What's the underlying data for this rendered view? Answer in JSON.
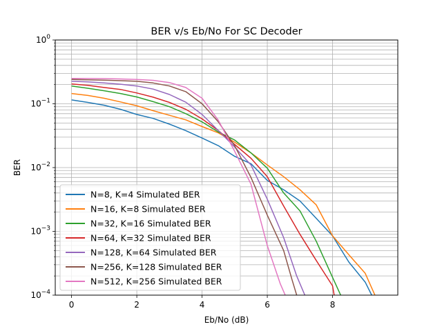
{
  "chart_data": {
    "type": "line",
    "title": "BER v/s Eb/No For SC Decoder",
    "xlabel": "Eb/No (dB)",
    "ylabel": "BER",
    "xlim": [
      -0.5,
      10
    ],
    "ylim": [
      0.0001,
      1
    ],
    "yscale": "log",
    "grid": true,
    "x_ticks": [
      0,
      2,
      4,
      6,
      8
    ],
    "x_tick_labels": [
      "0",
      "2",
      "4",
      "6",
      "8"
    ],
    "y_ticks": [
      0.0001,
      0.001,
      0.01,
      0.1,
      1
    ],
    "y_tick_labels": [
      {
        "base": "10",
        "exp": "−4"
      },
      {
        "base": "10",
        "exp": "−3"
      },
      {
        "base": "10",
        "exp": "−2"
      },
      {
        "base": "10",
        "exp": "−1"
      },
      {
        "base": "10",
        "exp": "0"
      }
    ],
    "legend_position": "lower-left",
    "series": [
      {
        "name": "N=8, K=4 Simulated BER",
        "color": "#1f77b4",
        "x": [
          0,
          0.5,
          1,
          1.5,
          2,
          2.5,
          3,
          3.5,
          4,
          4.5,
          5,
          5.5,
          6,
          6.5,
          7,
          7.5,
          8,
          8.5,
          9,
          9.2
        ],
        "y": [
          0.115,
          0.105,
          0.095,
          0.082,
          0.068,
          0.059,
          0.048,
          0.038,
          0.029,
          0.022,
          0.015,
          0.0115,
          0.0063,
          0.0045,
          0.003,
          0.0016,
          0.00085,
          0.00033,
          0.00016,
          0.0001
        ]
      },
      {
        "name": "N=16, K=8 Simulated BER",
        "color": "#ff7f0e",
        "x": [
          0,
          0.5,
          1,
          1.5,
          2,
          2.5,
          3,
          3.5,
          4,
          4.5,
          5,
          5.5,
          6,
          6.5,
          7,
          7.5,
          8,
          8.5,
          9,
          9.3
        ],
        "y": [
          0.145,
          0.135,
          0.122,
          0.107,
          0.093,
          0.078,
          0.066,
          0.056,
          0.044,
          0.035,
          0.025,
          0.017,
          0.011,
          0.0072,
          0.0045,
          0.0026,
          0.00085,
          0.00043,
          0.00022,
          0.0001
        ]
      },
      {
        "name": "N=32, K=16 Simulated BER",
        "color": "#2ca02c",
        "x": [
          0,
          0.5,
          1,
          1.5,
          2,
          2.5,
          3,
          3.5,
          4,
          4.5,
          5,
          5.5,
          6,
          6.5,
          7,
          7.5,
          8,
          8.25
        ],
        "y": [
          0.19,
          0.175,
          0.16,
          0.145,
          0.128,
          0.108,
          0.09,
          0.07,
          0.052,
          0.036,
          0.027,
          0.017,
          0.0098,
          0.004,
          0.0021,
          0.0007,
          0.00019,
          0.0001
        ]
      },
      {
        "name": "N=64, K=32 Simulated BER",
        "color": "#d62728",
        "x": [
          0,
          0.5,
          1,
          1.5,
          2,
          2.5,
          3,
          3.5,
          4,
          4.5,
          5,
          5.5,
          6,
          6.5,
          7,
          7.5,
          8,
          8.05
        ],
        "y": [
          0.205,
          0.195,
          0.18,
          0.168,
          0.148,
          0.127,
          0.105,
          0.082,
          0.058,
          0.038,
          0.023,
          0.014,
          0.0072,
          0.0025,
          0.0009,
          0.00035,
          0.00014,
          0.0001
        ]
      },
      {
        "name": "N=128, K=64 Simulated BER",
        "color": "#9467bd",
        "x": [
          0,
          0.5,
          1,
          1.5,
          2,
          2.5,
          3,
          3.5,
          4,
          4.5,
          5,
          5.5,
          6,
          6.5,
          6.9,
          7.15
        ],
        "y": [
          0.225,
          0.22,
          0.212,
          0.203,
          0.19,
          0.17,
          0.14,
          0.106,
          0.068,
          0.038,
          0.021,
          0.011,
          0.0032,
          0.0008,
          0.0002,
          0.0001
        ]
      },
      {
        "name": "N=256, K=128 Simulated BER",
        "color": "#8c564b",
        "x": [
          0,
          0.5,
          1,
          1.5,
          2,
          2.5,
          3,
          3.5,
          4,
          4.5,
          5,
          5.5,
          6,
          6.5,
          6.75,
          6.9
        ],
        "y": [
          0.24,
          0.238,
          0.235,
          0.23,
          0.225,
          0.212,
          0.19,
          0.155,
          0.1,
          0.052,
          0.022,
          0.007,
          0.0018,
          0.0005,
          0.00018,
          0.0001
        ]
      },
      {
        "name": "N=512, K=256 Simulated BER",
        "color": "#e377c2",
        "x": [
          0,
          0.5,
          1,
          1.5,
          2,
          2.5,
          3,
          3.5,
          4,
          4.5,
          5,
          5.5,
          6,
          6.4,
          6.55
        ],
        "y": [
          0.25,
          0.25,
          0.248,
          0.245,
          0.24,
          0.233,
          0.215,
          0.18,
          0.122,
          0.055,
          0.018,
          0.0055,
          0.0006,
          0.00015,
          0.0001
        ]
      }
    ]
  }
}
